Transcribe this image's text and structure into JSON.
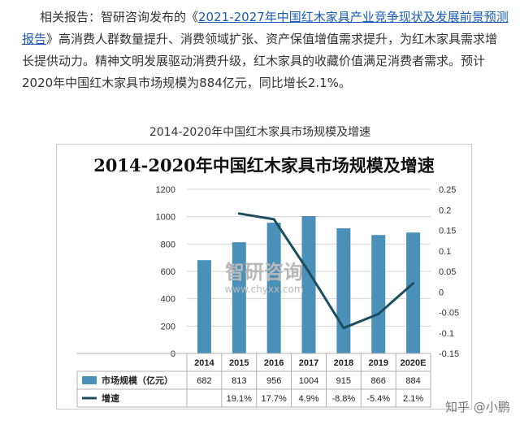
{
  "article": {
    "prefix": "相关报告：智研咨询发布的《",
    "link": "2021-2027年中国红木家具产业竞争现状及发展前景预测报告",
    "suffix": "》高消费人群数量提升、消费领域扩张、资产保值增值需求提升，为红木家具需求增长提供动力。精神文明发展驱动消费升级，红木家具的收藏价值满足消费者需求。预计2020年中国红木家具市场规模为884亿元，同比增长2.1%。"
  },
  "caption": "2014-2020年中国红木家具市场规模及增速",
  "watermark": {
    "name": "智研咨询",
    "url": "www.chyxx.com",
    "footer": "知乎 @小鹏"
  },
  "colors": {
    "bar": "#4a90b8",
    "line": "#1c4e5e",
    "grid": "#d4d4d4"
  },
  "chart_data": {
    "type": "bar",
    "title": "2014-2020年中国红木家具市场规模及增速",
    "categories": [
      "2014",
      "2015",
      "2016",
      "2017",
      "2018",
      "2019",
      "2020E"
    ],
    "series": [
      {
        "name": "市场规模（亿元）",
        "type": "bar",
        "axis": "left",
        "values": [
          682,
          813,
          956,
          1004,
          915,
          866,
          884
        ]
      },
      {
        "name": "增速",
        "type": "line",
        "axis": "right",
        "values": [
          null,
          0.191,
          0.177,
          0.049,
          -0.088,
          -0.054,
          0.021
        ]
      }
    ],
    "table_rows": [
      [
        "682",
        "813",
        "956",
        "1004",
        "915",
        "866",
        "884"
      ],
      [
        "",
        "19.1%",
        "17.7%",
        "4.9%",
        "-8.8%",
        "-5.4%",
        "2.1%"
      ]
    ],
    "y_left": {
      "min": 0,
      "max": 1200,
      "ticks": [
        "0",
        "200",
        "400",
        "600",
        "800",
        "1000",
        "1200"
      ]
    },
    "y_right": {
      "min": -0.15,
      "max": 0.25,
      "ticks": [
        "-0.15",
        "-0.1",
        "-0.05",
        "0",
        "0.05",
        "0.1",
        "0.15",
        "0.2",
        "0.25"
      ]
    },
    "grid": true,
    "legend": "data-table"
  }
}
